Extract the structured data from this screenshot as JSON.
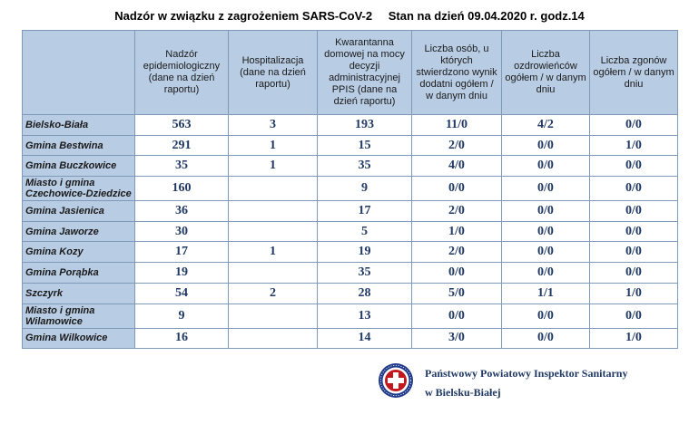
{
  "title": {
    "main": "Nadzór w związku z zagrożeniem SARS-CoV-2",
    "date": "Stan na dzień 09.04.2020 r. godz.14"
  },
  "columns": [
    "Nadzór epidemiologiczny (dane na dzień raportu)",
    "Hospitalizacja (dane na dzień raportu)",
    "Kwarantanna domowej na mocy decyzji administracyjnej PPIS (dane na dzień raportu)",
    "Liczba osób, u których stwierdzono wynik dodatni ogółem / w danym dniu",
    "Liczba ozdrowieńców ogółem / w danym dniu",
    "Liczba zgonów ogółem / w danym dniu"
  ],
  "rows": [
    {
      "name": "Bielsko-Biała",
      "values": [
        "563",
        "3",
        "193",
        "11/0",
        "4/2",
        "0/0"
      ]
    },
    {
      "name": "Gmina Bestwina",
      "values": [
        "291",
        "1",
        "15",
        "2/0",
        "0/0",
        "1/0"
      ]
    },
    {
      "name": "Gmina Buczkowice",
      "values": [
        "35",
        "1",
        "35",
        "4/0",
        "0/0",
        "0/0"
      ]
    },
    {
      "name": "Miasto i gmina Czechowice-Dziedzice",
      "values": [
        "160",
        "",
        "9",
        "0/0",
        "0/0",
        "0/0"
      ]
    },
    {
      "name": "Gmina Jasienica",
      "values": [
        "36",
        "",
        "17",
        "2/0",
        "0/0",
        "0/0"
      ]
    },
    {
      "name": "Gmina Jaworze",
      "values": [
        "30",
        "",
        "5",
        "1/0",
        "0/0",
        "0/0"
      ]
    },
    {
      "name": "Gmina Kozy",
      "values": [
        "17",
        "1",
        "19",
        "2/0",
        "0/0",
        "0/0"
      ]
    },
    {
      "name": "Gmina Porąbka",
      "values": [
        "19",
        "",
        "35",
        "0/0",
        "0/0",
        "0/0"
      ]
    },
    {
      "name": "Szczyrk",
      "values": [
        "54",
        "2",
        "28",
        "5/0",
        "1/1",
        "1/0"
      ]
    },
    {
      "name": "Miasto i gmina Wilamowice",
      "values": [
        "9",
        "",
        "13",
        "0/0",
        "0/0",
        "0/0"
      ]
    },
    {
      "name": "Gmina Wilkowice",
      "values": [
        "16",
        "",
        "14",
        "3/0",
        "0/0",
        "1/0"
      ]
    }
  ],
  "footer": {
    "line1": "Państwowy Powiatowy Inspektor Sanitarny",
    "line2": "w Bielsku-Białej"
  },
  "colors": {
    "header_bg": "#b8cce4",
    "value_text": "#1f3864",
    "seal_red": "#c0181e",
    "seal_navy": "#1f3a8a"
  }
}
